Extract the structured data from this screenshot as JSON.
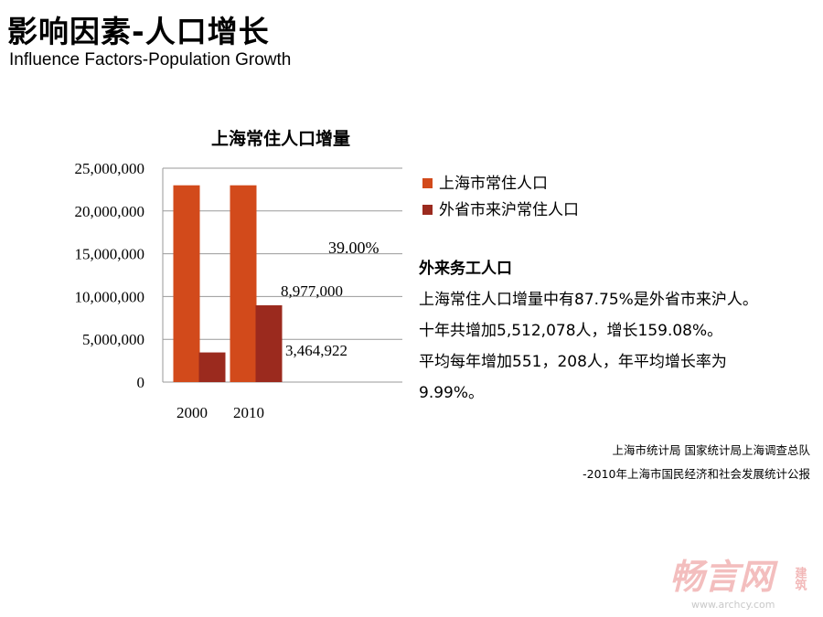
{
  "slide": {
    "title_cn": "影响因素-人口增长",
    "title_en": "Influence Factors-Population Growth"
  },
  "chart_data": {
    "type": "bar",
    "title": "上海常住人口增量",
    "categories": [
      "2000",
      "2010"
    ],
    "series": [
      {
        "name": "上海市常住人口",
        "values": [
          23000000,
          23000000
        ],
        "color": "#d24a1b"
      },
      {
        "name": "外省市来沪常住人口",
        "values": [
          3464922,
          8977000
        ],
        "color": "#9b2a1e"
      }
    ],
    "ylim": [
      0,
      25000000
    ],
    "yticks": [
      "25,000,000",
      "20,000,000",
      "15,000,000",
      "10,000,000",
      "5,000,000",
      "0"
    ],
    "ytick_values": [
      25000000,
      20000000,
      15000000,
      10000000,
      5000000,
      0
    ],
    "grid": true,
    "legend_position": "right",
    "annotations": [
      "39.00%",
      "8,977,000",
      "3,464,922"
    ]
  },
  "info": {
    "heading": "外来务工人口",
    "lines": [
      "上海常住人口增量中有87.75%是外省市来沪人。",
      "十年共增加5,512,078人，增长159.08%。",
      "平均每年增加551，208人，年平均增长率为",
      "9.99%。"
    ]
  },
  "source": {
    "line1": "上海市统计局 国家统计局上海调查总队",
    "line2": "-2010年上海市国民经济和社会发展统计公报"
  },
  "watermark": {
    "brand": "畅言网",
    "side": "建筑",
    "url": "www.archcy.com"
  }
}
